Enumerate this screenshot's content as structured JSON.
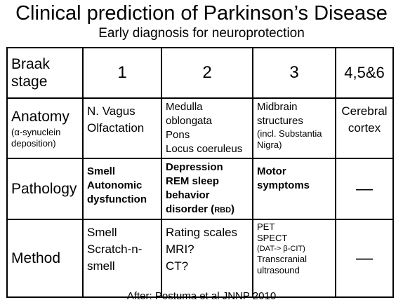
{
  "title": "Clinical prediction of Parkinson’s Disease",
  "subtitle": "Early diagnosis for neuroprotection",
  "table": {
    "header": {
      "label_line1": "Braak",
      "label_line2": "stage",
      "stages": [
        "1",
        "2",
        "3",
        "4,5&6"
      ]
    },
    "anatomy": {
      "label": "Anatomy",
      "note": "(α-synuclein deposition)",
      "stage1": [
        "N. Vagus",
        "Olfactation"
      ],
      "stage2": [
        "Medulla oblongata",
        "Pons",
        "Locus coeruleus"
      ],
      "stage3_main": "Midbrain structures",
      "stage3_note": "(incl. Substantia Nigra)",
      "stage4": "Cerebral cortex"
    },
    "pathology": {
      "label": "Pathology",
      "stage1": [
        "Smell",
        "Autonomic dysfunction"
      ],
      "stage2_line1": "Depression",
      "stage2_line2": "REM sleep behavior disorder (",
      "stage2_rbd": "RBD",
      "stage2_close": ")",
      "stage3": "Motor symptoms",
      "stage4": "—"
    },
    "method": {
      "label": "Method",
      "stage1": [
        "Smell",
        "Scratch-n-smell"
      ],
      "stage2": [
        "Rating scales",
        "MRI?",
        "CT?"
      ],
      "stage3": [
        "PET",
        "SPECT"
      ],
      "stage3_note": "(DAT-> β-CIT)",
      "stage3_last": "Transcranial ultrasound",
      "stage4": "—"
    }
  },
  "footer": "After: Postuma et al JNNP 2010"
}
